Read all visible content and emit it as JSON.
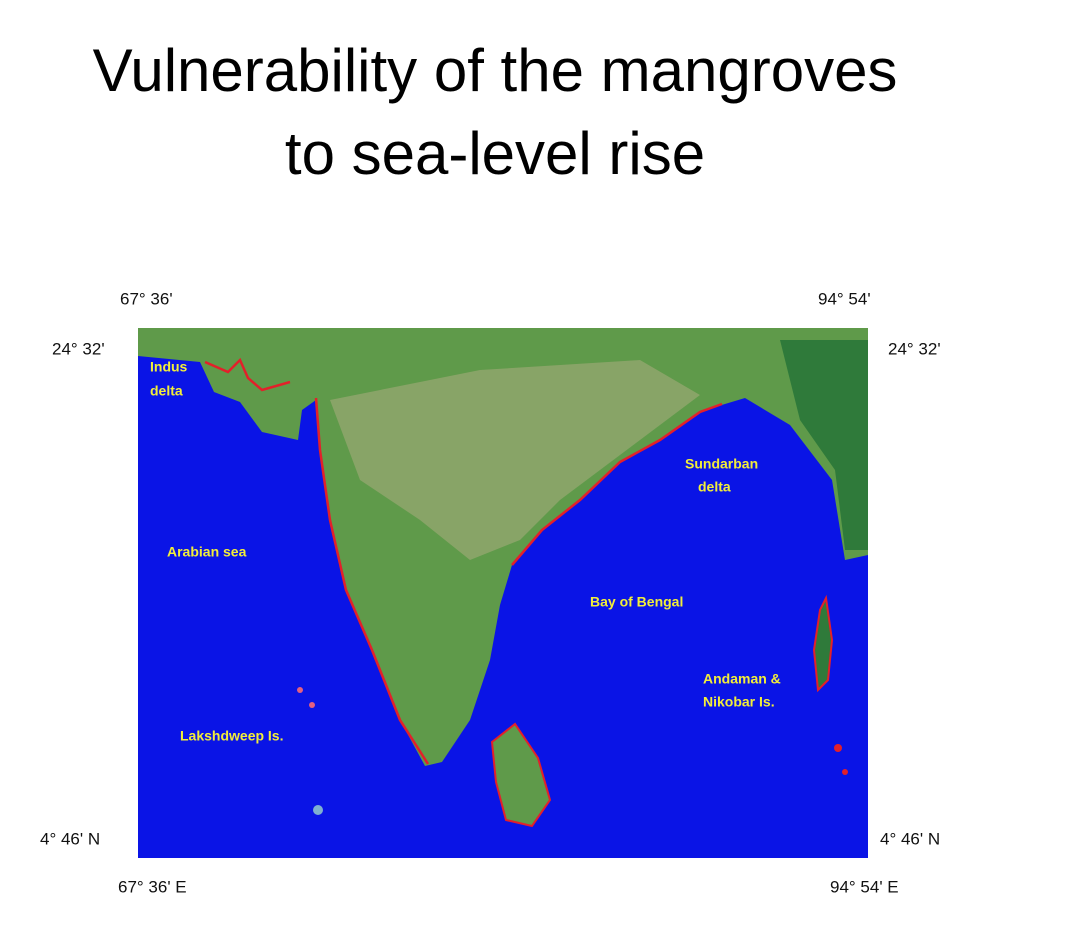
{
  "title": {
    "lines": [
      "Vulnerability of the mangroves",
      "to sea-level rise"
    ]
  },
  "coordinates": {
    "top_left_longitude": "67° 36'",
    "top_right_longitude": "94° 54'",
    "left_top_latitude": "24° 32'",
    "right_top_latitude": "24° 32'",
    "left_bottom_latitude": "4° 46' N",
    "right_bottom_latitude": "4° 46' N",
    "bottom_left_longitude": "67° 36' E",
    "bottom_right_longitude": "94° 54' E"
  },
  "map_labels": [
    {
      "lines": [
        "Indus",
        "delta"
      ]
    },
    {
      "lines": [
        "Sundarban",
        "delta"
      ]
    },
    {
      "lines": [
        "Arabian sea"
      ]
    },
    {
      "lines": [
        "Bay of Bengal"
      ]
    },
    {
      "lines": [
        "Andaman &",
        "Nikobar Is."
      ]
    },
    {
      "lines": [
        "Lakshdweep Is."
      ]
    }
  ]
}
